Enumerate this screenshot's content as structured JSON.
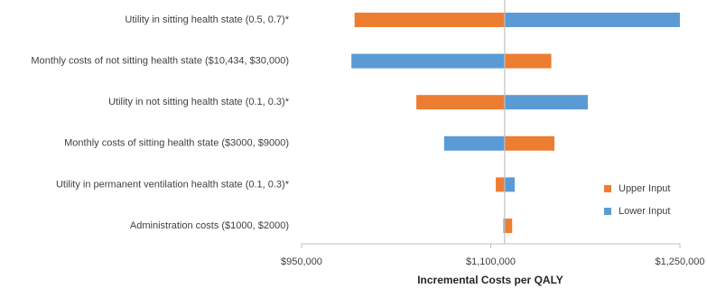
{
  "chart_data": {
    "type": "tornado",
    "categories": [
      "Utility in sitting health state (0.5, 0.7)*",
      "Monthly costs of not sitting health state ($10,434, $30,000)",
      "Utility in not sitting health state (0.1, 0.3)*",
      "Monthly costs of sitting health state ($3000, $9000)",
      "Utility in permanent ventilation health state (0.1, 0.3)*",
      "Administration costs ($1000, $2000)"
    ],
    "base_value": 1111000,
    "series": [
      {
        "name": "Upper Input",
        "color": "#ed7d31",
        "values": [
          992000,
          1148000,
          1041000,
          1150500,
          1104000,
          1117000
        ]
      },
      {
        "name": "Lower Input",
        "color": "#5b9bd5",
        "values": [
          1250000,
          989500,
          1177000,
          1063000,
          1119000,
          1110000
        ]
      }
    ],
    "xlim": [
      950000,
      1250000
    ],
    "xticks": [
      {
        "value": 950000,
        "label": "$950,000"
      },
      {
        "value": 1100000,
        "label": "$1,100,000"
      },
      {
        "value": 1250000,
        "label": "$1,250,000"
      }
    ],
    "x_label": "Incremental Costs per QALY",
    "legend": "right"
  }
}
